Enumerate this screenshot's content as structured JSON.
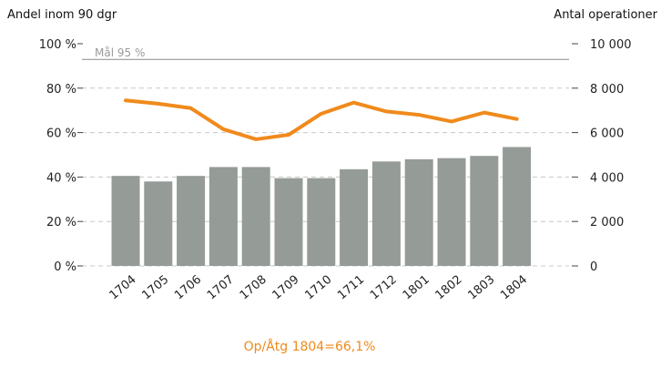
{
  "chart_data": {
    "type": "bar",
    "left_axis_title": "Andel inom 90 dgr",
    "right_axis_title": "Antal operationer",
    "categories": [
      "1704",
      "1705",
      "1706",
      "1707",
      "1708",
      "1709",
      "1710",
      "1711",
      "1712",
      "1801",
      "1802",
      "1803",
      "1804"
    ],
    "bar_values": [
      4050,
      3800,
      4050,
      4450,
      4450,
      3950,
      3950,
      4350,
      4700,
      4800,
      4850,
      4950,
      5350
    ],
    "line_values": [
      74.5,
      73,
      71,
      61.5,
      57,
      59,
      68.5,
      73.5,
      69.5,
      68,
      65,
      69,
      66.1
    ],
    "left_axis": {
      "min": 0,
      "max": 100,
      "ticks": [
        0,
        20,
        40,
        60,
        80,
        100
      ],
      "tick_labels": [
        "0 %",
        "20 %",
        "40 %",
        "60 %",
        "80 %",
        "100 %"
      ]
    },
    "right_axis": {
      "min": 0,
      "max": 10000,
      "ticks": [
        0,
        2000,
        4000,
        6000,
        8000,
        10000
      ],
      "tick_labels": [
        "0",
        "2 000",
        "4 000",
        "6 000",
        "8 000",
        "10 000"
      ]
    },
    "goal": {
      "value": 95,
      "label": "Mål 95 %"
    },
    "footer": "Op/Åtg 1804=66,1%",
    "colors": {
      "bars": "#959b96",
      "line": "#f08a1c",
      "grid": "#c8c8c8",
      "goal_line": "#8a8a8a"
    },
    "grid": true
  }
}
